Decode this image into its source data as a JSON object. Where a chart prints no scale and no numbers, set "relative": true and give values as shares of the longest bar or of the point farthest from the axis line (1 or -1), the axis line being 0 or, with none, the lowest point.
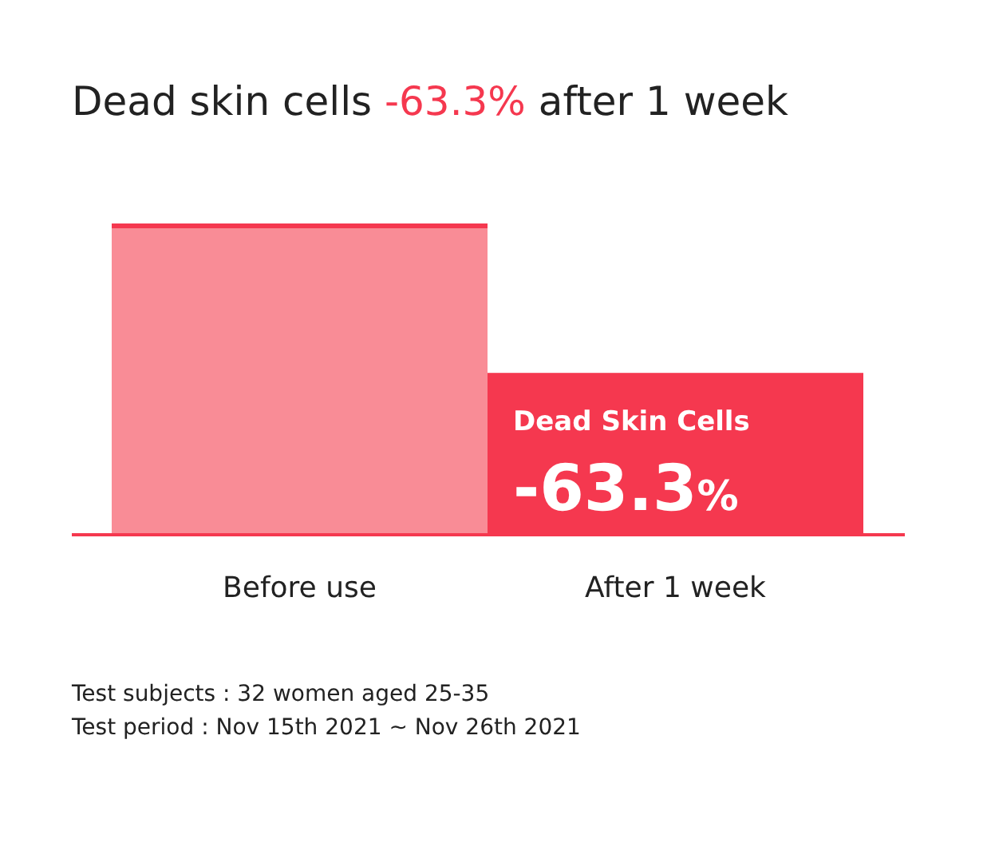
{
  "chart_data": {
    "type": "bar",
    "title": "Dead skin cells -63.3% after 1 week",
    "relative": true,
    "categories": [
      "Before use",
      "After 1 week"
    ],
    "values": [
      1,
      0.52
    ],
    "colors": [
      "#f98c96",
      "#f5384f"
    ],
    "annotations": [
      {
        "text": "Dead Skin Cells",
        "x": "After 1 week",
        "y": 0.52
      },
      {
        "text": "-63.3%",
        "x": "After 1 week",
        "y": 0.52
      },
      "Test subjects : 32 women aged 25-35",
      "Test period : Nov 15th 2021 ~ Nov 26th 2021"
    ]
  }
}
